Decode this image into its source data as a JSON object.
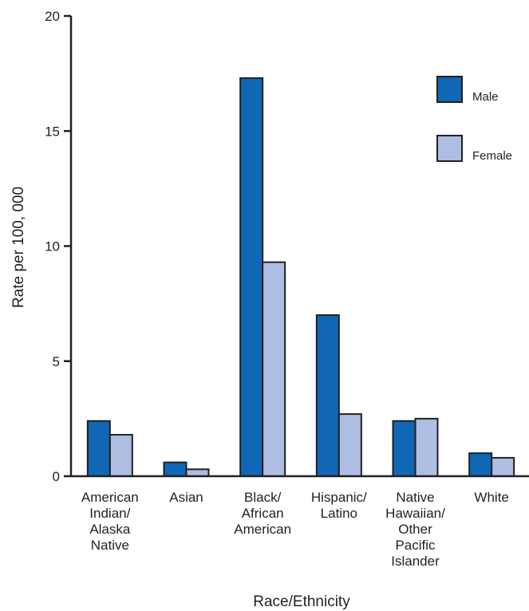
{
  "chart_data": {
    "type": "bar",
    "title": "",
    "xlabel": "Race/Ethnicity",
    "ylabel": "Rate per 100, 000",
    "ylim": [
      0,
      20
    ],
    "yticks": [
      0,
      5,
      10,
      15,
      20
    ],
    "grid": false,
    "legend_position": "top-right",
    "categories": [
      [
        "American",
        "Indian/",
        "Alaska",
        "Native"
      ],
      [
        "Asian"
      ],
      [
        "Black/",
        "African",
        "American"
      ],
      [
        "Hispanic/",
        "Latino"
      ],
      [
        "Native",
        "Hawaiian/",
        "Other",
        "Pacific",
        "Islander"
      ],
      [
        "White"
      ]
    ],
    "series": [
      {
        "name": "Male",
        "color": "#0f67b5",
        "values": [
          2.4,
          0.6,
          17.3,
          7.0,
          2.4,
          1.0
        ]
      },
      {
        "name": "Female",
        "color": "#aebde2",
        "values": [
          1.8,
          0.3,
          9.3,
          2.7,
          2.5,
          0.8
        ]
      }
    ]
  }
}
